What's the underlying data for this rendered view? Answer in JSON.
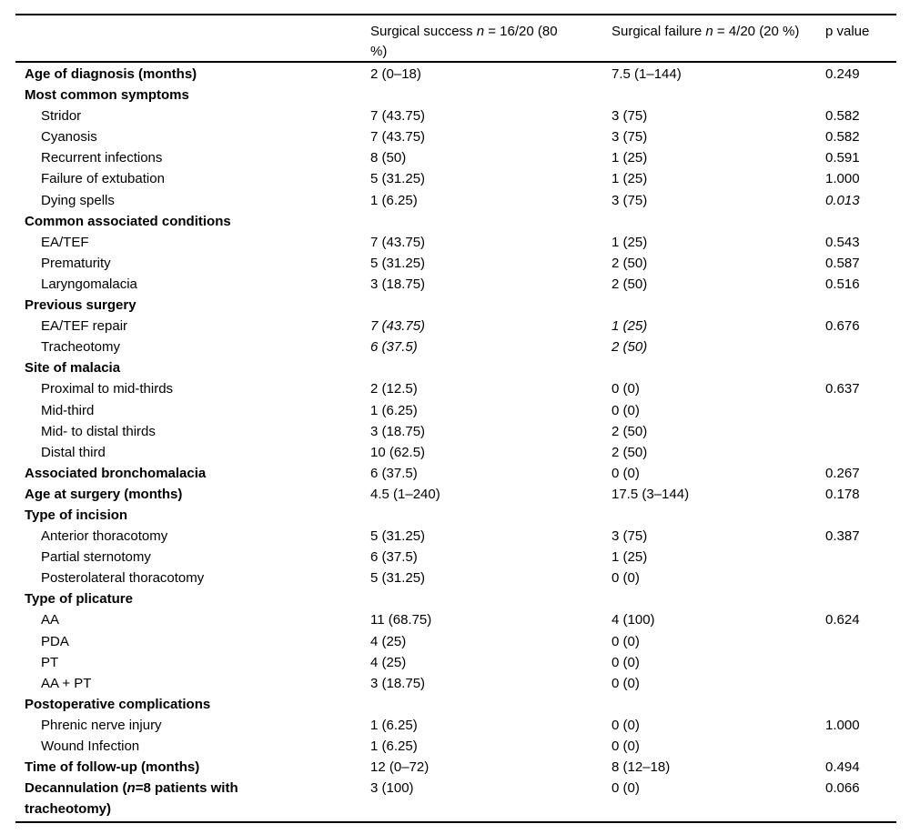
{
  "colors": {
    "text": "#000000",
    "rule": "#000000",
    "background": "#ffffff"
  },
  "table": {
    "header": {
      "label": "",
      "success_parts": [
        {
          "text": "Surgical success "
        },
        {
          "text": "n",
          "italic": true
        },
        {
          "text": " = 16/20 (80 %)"
        }
      ],
      "failure_parts": [
        {
          "text": "Surgical failure "
        },
        {
          "text": "n",
          "italic": true
        },
        {
          "text": " = 4/20 (20 %)"
        }
      ],
      "p_label": "p value"
    },
    "rows": [
      {
        "label": "Age of diagnosis (months)",
        "bold": true,
        "success": "2 (0–18)",
        "failure": "7.5 (1–144)",
        "p": "0.249"
      },
      {
        "label": "Most common symptoms",
        "bold": true
      },
      {
        "label": "Stridor",
        "indent": true,
        "success": "7 (43.75)",
        "failure": "3 (75)",
        "p": "0.582"
      },
      {
        "label": "Cyanosis",
        "indent": true,
        "success": "7 (43.75)",
        "failure": "3 (75)",
        "p": "0.582"
      },
      {
        "label": "Recurrent infections",
        "indent": true,
        "success": "8 (50)",
        "failure": "1 (25)",
        "p": "0.591"
      },
      {
        "label": "Failure of extubation",
        "indent": true,
        "success": "5 (31.25)",
        "failure": "1 (25)",
        "p": "1.000"
      },
      {
        "label": "Dying spells",
        "indent": true,
        "success": "1 (6.25)",
        "failure": "3 (75)",
        "p": "0.013",
        "p_italic": true
      },
      {
        "label": "Common associated conditions",
        "bold": true
      },
      {
        "label": "EA/TEF",
        "indent": true,
        "success": "7 (43.75)",
        "failure": "1 (25)",
        "p": "0.543"
      },
      {
        "label": "Prematurity",
        "indent": true,
        "success": "5 (31.25)",
        "failure": "2 (50)",
        "p": "0.587"
      },
      {
        "label": "Laryngomalacia",
        "indent": true,
        "success": "3 (18.75)",
        "failure": "2 (50)",
        "p": "0.516"
      },
      {
        "label": "Previous surgery",
        "bold": true
      },
      {
        "label": "EA/TEF repair",
        "indent": true,
        "success": "7 (43.75)",
        "failure": "1 (25)",
        "p": "0.676",
        "val_italic": true
      },
      {
        "label": "Tracheotomy",
        "indent": true,
        "success": "6 (37.5)",
        "failure": "2 (50)",
        "val_italic": true
      },
      {
        "label": "Site of malacia",
        "bold": true
      },
      {
        "label": "Proximal to mid-thirds",
        "indent": true,
        "success": "2 (12.5)",
        "failure": "0 (0)",
        "p": "0.637"
      },
      {
        "label": "Mid-third",
        "indent": true,
        "success": "1 (6.25)",
        "failure": "0 (0)"
      },
      {
        "label": "Mid- to distal thirds",
        "indent": true,
        "success": "3 (18.75)",
        "failure": "2 (50)"
      },
      {
        "label": "Distal third",
        "indent": true,
        "success": "10 (62.5)",
        "failure": "2 (50)"
      },
      {
        "label": "Associated bronchomalacia",
        "bold": true,
        "success": "6 (37.5)",
        "failure": "0 (0)",
        "p": "0.267"
      },
      {
        "label": "Age at surgery (months)",
        "bold": true,
        "success": "4.5 (1–240)",
        "failure": "17.5 (3–144)",
        "p": "0.178"
      },
      {
        "label": "Type of incision",
        "bold": true
      },
      {
        "label": "Anterior thoracotomy",
        "indent": true,
        "success": "5 (31.25)",
        "failure": "3 (75)",
        "p": "0.387"
      },
      {
        "label": "Partial sternotomy",
        "indent": true,
        "success": "6 (37.5)",
        "failure": "1 (25)"
      },
      {
        "label": "Posterolateral thoracotomy",
        "indent": true,
        "success": "5 (31.25)",
        "failure": "0 (0)"
      },
      {
        "label": "Type of plicature",
        "bold": true
      },
      {
        "label": "AA",
        "indent": true,
        "success": "11 (68.75)",
        "failure": "4 (100)",
        "p": "0.624"
      },
      {
        "label": "PDA",
        "indent": true,
        "success": "4 (25)",
        "failure": "0 (0)"
      },
      {
        "label": "PT",
        "indent": true,
        "success": "4 (25)",
        "failure": "0 (0)"
      },
      {
        "label": "AA + PT",
        "indent": true,
        "success": "3 (18.75)",
        "failure": "0 (0)"
      },
      {
        "label": "Postoperative complications",
        "bold": true
      },
      {
        "label": "Phrenic nerve injury",
        "indent": true,
        "success": "1 (6.25)",
        "failure": "0 (0)",
        "p": "1.000"
      },
      {
        "label": "Wound Infection",
        "indent": true,
        "success": "1 (6.25)",
        "failure": "0 (0)"
      },
      {
        "label": "Time of follow-up (months)",
        "bold": true,
        "success": "12 (0–72)",
        "failure": "8 (12–18)",
        "p": "0.494"
      },
      {
        "label_parts": [
          {
            "text": "Decannulation (",
            "bold": true
          },
          {
            "text": "n",
            "bold": true,
            "italic": true
          },
          {
            "text": "=8 patients with tracheotomy)",
            "bold": true
          }
        ],
        "bold": true,
        "success": "3 (100)",
        "failure": "0 (0)",
        "p": "0.066"
      }
    ]
  }
}
